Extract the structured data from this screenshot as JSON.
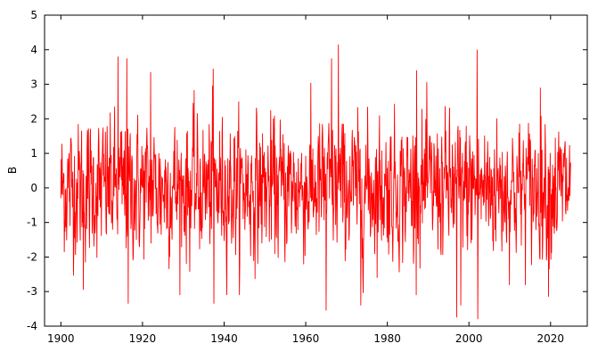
{
  "chart_data": {
    "type": "line",
    "title": "",
    "xlabel": "",
    "ylabel": "B",
    "xlim": [
      1896,
      2029
    ],
    "ylim": [
      -4,
      5
    ],
    "xticks": [
      "1900",
      "1920",
      "1940",
      "1960",
      "1980",
      "2000",
      "2020"
    ],
    "yticks": [
      "-4",
      "-3",
      "-2",
      "-1",
      "0",
      "1",
      "2",
      "3",
      "4",
      "5"
    ],
    "grid": false,
    "legend": "none",
    "series": [
      {
        "color": "#ff0000",
        "x_start": 1900.0,
        "x_end": 2024.9,
        "points_per_year": 12,
        "note_values": "monthly values, noisy series centered near 0 with range about -3.8 to 4.2",
        "peaks": [
          {
            "x": 1914.0,
            "y": 3.8
          },
          {
            "x": 1916.2,
            "y": 3.75
          },
          {
            "x": 1922.0,
            "y": 3.35
          },
          {
            "x": 1937.3,
            "y": 3.45
          },
          {
            "x": 1966.3,
            "y": 3.75
          },
          {
            "x": 1968.0,
            "y": 4.15
          },
          {
            "x": 1987.2,
            "y": 3.4
          },
          {
            "x": 2002.0,
            "y": 4.0
          },
          {
            "x": 2017.5,
            "y": 2.9
          }
        ],
        "troughs": [
          {
            "x": 1905.5,
            "y": -2.95
          },
          {
            "x": 1916.5,
            "y": -3.35
          },
          {
            "x": 1937.5,
            "y": -3.35
          },
          {
            "x": 1965.0,
            "y": -3.55
          },
          {
            "x": 1973.5,
            "y": -3.4
          },
          {
            "x": 1997.0,
            "y": -3.75
          },
          {
            "x": 1998.0,
            "y": -3.4
          },
          {
            "x": 2002.2,
            "y": -3.8
          },
          {
            "x": 2019.5,
            "y": -3.15
          }
        ]
      }
    ]
  }
}
